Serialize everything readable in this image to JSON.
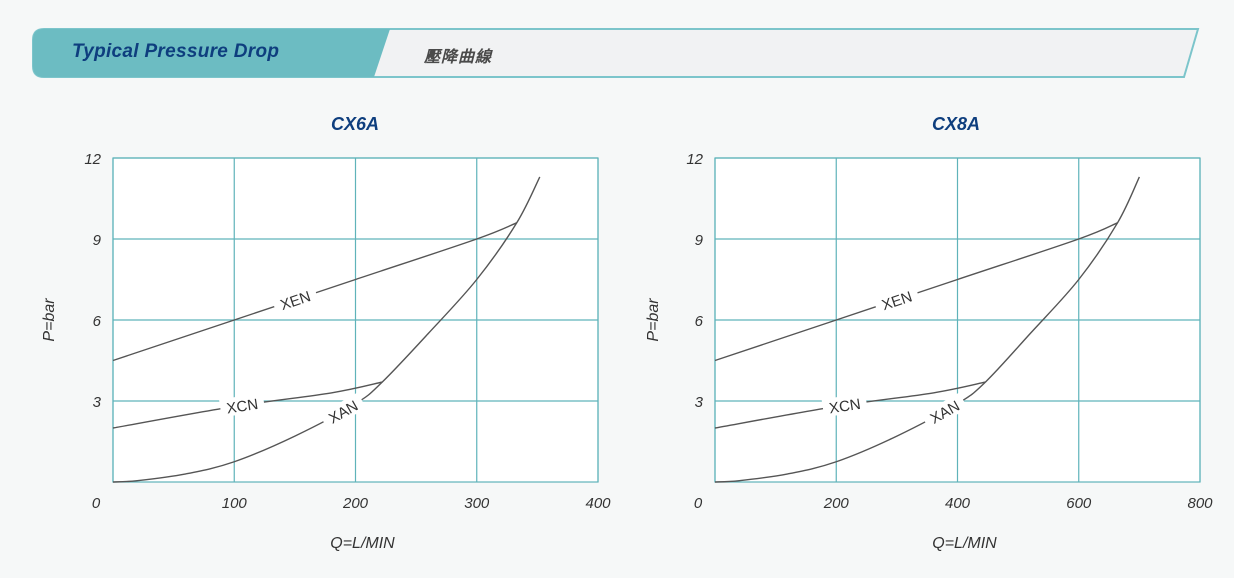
{
  "banner": {
    "title": "Typical Pressure Drop",
    "subtitle": "壓降曲線"
  },
  "colors": {
    "banner_tab": "#6cbcc2",
    "banner_border": "#7cc5cb",
    "grid": "#5fb3ba",
    "curve": "#555555",
    "title": "#0e3e7e"
  },
  "chart_data": [
    {
      "type": "line",
      "title": "CX6A",
      "xlabel": "Q=L/MIN",
      "ylabel": "P=bar",
      "xlim": [
        0,
        400
      ],
      "ylim": [
        0,
        12
      ],
      "x_ticks": [
        "0",
        "100",
        "200",
        "300",
        "400"
      ],
      "y_ticks": [
        "3",
        "6",
        "9",
        "12"
      ],
      "grid": true,
      "series": [
        {
          "name": "XEN",
          "x": [
            0,
            100,
            200,
            300,
            333
          ],
          "y": [
            4.5,
            6.0,
            7.5,
            9.0,
            9.6
          ],
          "label_at": 0.45
        },
        {
          "name": "XCN",
          "x": [
            0,
            100,
            180,
            222
          ],
          "y": [
            2.0,
            2.8,
            3.3,
            3.7
          ],
          "label_at": 0.48
        },
        {
          "name": "XAN",
          "x": [
            0,
            20,
            60,
            100,
            150,
            200,
            222,
            260,
            300,
            333,
            352
          ],
          "y": [
            0,
            0.05,
            0.3,
            0.75,
            1.7,
            2.9,
            3.7,
            5.5,
            7.5,
            9.6,
            11.3
          ],
          "label_at": 0.44
        }
      ]
    },
    {
      "type": "line",
      "title": "CX8A",
      "xlabel": "Q=L/MIN",
      "ylabel": "P=bar",
      "xlim": [
        0,
        800
      ],
      "ylim": [
        0,
        12
      ],
      "x_ticks": [
        "0",
        "200",
        "400",
        "600",
        "800"
      ],
      "y_ticks": [
        "3",
        "6",
        "9",
        "12"
      ],
      "grid": true,
      "series": [
        {
          "name": "XEN",
          "x": [
            0,
            200,
            400,
            600,
            664
          ],
          "y": [
            4.5,
            6.0,
            7.5,
            9.0,
            9.6
          ],
          "label_at": 0.45
        },
        {
          "name": "XCN",
          "x": [
            0,
            200,
            360,
            446
          ],
          "y": [
            2.0,
            2.8,
            3.3,
            3.7
          ],
          "label_at": 0.48
        },
        {
          "name": "XAN",
          "x": [
            0,
            40,
            120,
            200,
            300,
            400,
            446,
            520,
            600,
            664,
            700
          ],
          "y": [
            0,
            0.05,
            0.3,
            0.75,
            1.7,
            2.9,
            3.7,
            5.5,
            7.5,
            9.6,
            11.3
          ],
          "label_at": 0.44
        }
      ]
    }
  ]
}
